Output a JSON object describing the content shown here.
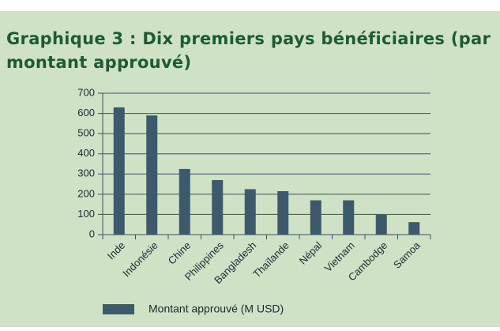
{
  "chart_data": {
    "type": "bar",
    "title_lines": [
      "Graphique 3 : Dix premiers pays bénéficiaires (par",
      "montant approuvé)"
    ],
    "categories": [
      "Inde",
      "Indonésie",
      "Chine",
      "Philippines",
      "Bangladesh",
      "Thaïlande",
      "Népal",
      "Vietnam",
      "Cambodge",
      "Samoa"
    ],
    "series": [
      {
        "name": "Montant approuvé (M USD)",
        "color": "#3c5a6b",
        "values": [
          630,
          590,
          325,
          270,
          225,
          215,
          170,
          170,
          98,
          62
        ]
      }
    ],
    "ylim": [
      0,
      700
    ],
    "yticks": [
      0,
      100,
      200,
      300,
      400,
      500,
      600,
      700
    ],
    "grid": true
  }
}
